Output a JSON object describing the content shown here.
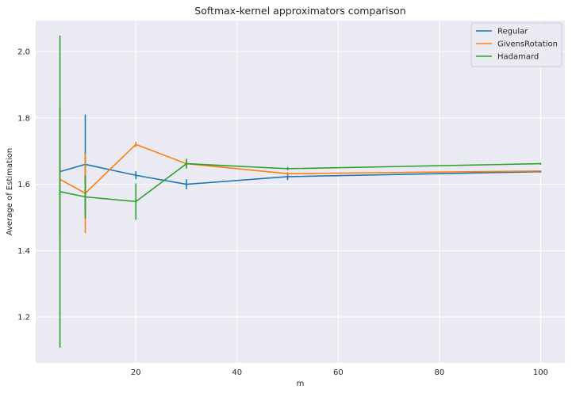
{
  "chart_data": {
    "type": "line",
    "title": "Softmax-kernel approximators comparison",
    "xlabel": "m",
    "ylabel": "Average of Estimation",
    "x": [
      5,
      10,
      20,
      30,
      50,
      100
    ],
    "xlim": [
      0.2,
      104.8
    ],
    "ylim": [
      1.062,
      2.093
    ],
    "xticks": [
      20,
      40,
      60,
      80,
      100
    ],
    "yticks": [
      1.2,
      1.4,
      1.6,
      1.8,
      2.0
    ],
    "ytick_labels": [
      "1.2",
      "1.4",
      "1.6",
      "1.8",
      "2.0"
    ],
    "grid": true,
    "legend": "top-right",
    "series": [
      {
        "name": "Regular",
        "color": "#1f77b4",
        "values": [
          1.638,
          1.66,
          1.627,
          1.6,
          1.623,
          1.638
        ],
        "yerr": [
          0.19,
          0.15,
          0.012,
          0.015,
          0.01,
          0.003
        ]
      },
      {
        "name": "GivensRotation",
        "color": "#ff7f0e",
        "values": [
          1.615,
          1.573,
          1.72,
          1.662,
          1.632,
          1.64
        ],
        "yerr": [
          0.215,
          0.12,
          0.008,
          0.01,
          0.005,
          0.002
        ]
      },
      {
        "name": "Hadamard",
        "color": "#2ca02c",
        "values": [
          1.578,
          1.562,
          1.548,
          1.662,
          1.647,
          1.662
        ],
        "yerr": [
          0.47,
          0.065,
          0.055,
          0.015,
          0.005,
          0.003
        ]
      }
    ]
  }
}
